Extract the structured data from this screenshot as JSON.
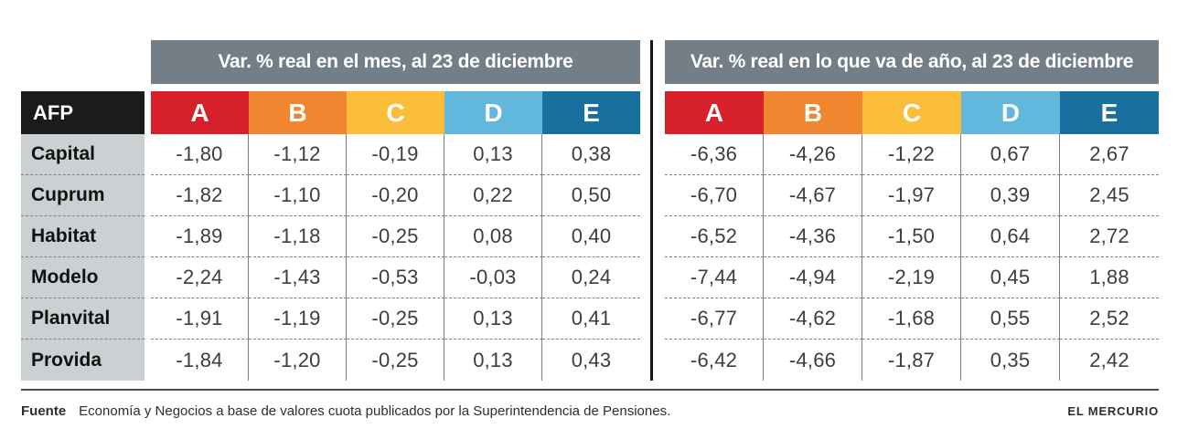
{
  "colors": {
    "page_bg": "#ffffff",
    "band": "#747e87",
    "afp_header": "#1d1b1a",
    "label_bg": "#cbd1d3",
    "label_text": "#111111",
    "value_text": "#3d3d3d",
    "grid_line": "#7f7f7f",
    "dotted_line": "#808080",
    "divider": "#161616",
    "rule": "#4c4c4c",
    "footer_text": "#2d2d2d"
  },
  "chart_data": {
    "type": "table",
    "row_header": "AFP",
    "decimal_separator": ",",
    "funds": [
      "Capital",
      "Cuprum",
      "Habitat",
      "Modelo",
      "Planvital",
      "Provida"
    ],
    "categories": [
      "A",
      "B",
      "C",
      "D",
      "E"
    ],
    "category_colors": [
      "#d7212a",
      "#f0862f",
      "#fbbe3b",
      "#62b8dc",
      "#17709e"
    ],
    "sections": [
      {
        "title": "Var. % real en el mes, al 23 de diciembre",
        "values": [
          [
            -1.8,
            -1.12,
            -0.19,
            0.13,
            0.38
          ],
          [
            -1.82,
            -1.1,
            -0.2,
            0.22,
            0.5
          ],
          [
            -1.89,
            -1.18,
            -0.25,
            0.08,
            0.4
          ],
          [
            -2.24,
            -1.43,
            -0.53,
            -0.03,
            0.24
          ],
          [
            -1.91,
            -1.19,
            -0.25,
            0.13,
            0.41
          ],
          [
            -1.84,
            -1.2,
            -0.25,
            0.13,
            0.43
          ]
        ]
      },
      {
        "title": "Var. % real en lo que va de año, al 23 de diciembre",
        "values": [
          [
            -6.36,
            -4.26,
            -1.22,
            0.67,
            2.67
          ],
          [
            -6.7,
            -4.67,
            -1.97,
            0.39,
            2.45
          ],
          [
            -6.52,
            -4.36,
            -1.5,
            0.64,
            2.72
          ],
          [
            -7.44,
            -4.94,
            -2.19,
            0.45,
            1.88
          ],
          [
            -6.77,
            -4.62,
            -1.68,
            0.55,
            2.52
          ],
          [
            -6.42,
            -4.66,
            -1.87,
            0.35,
            2.42
          ]
        ]
      }
    ]
  },
  "footer": {
    "source_label": "Fuente",
    "source_text": "Economía y Negocios a base de valores cuota publicados por la Superintendencia de Pensiones.",
    "credit": "EL MERCURIO"
  }
}
